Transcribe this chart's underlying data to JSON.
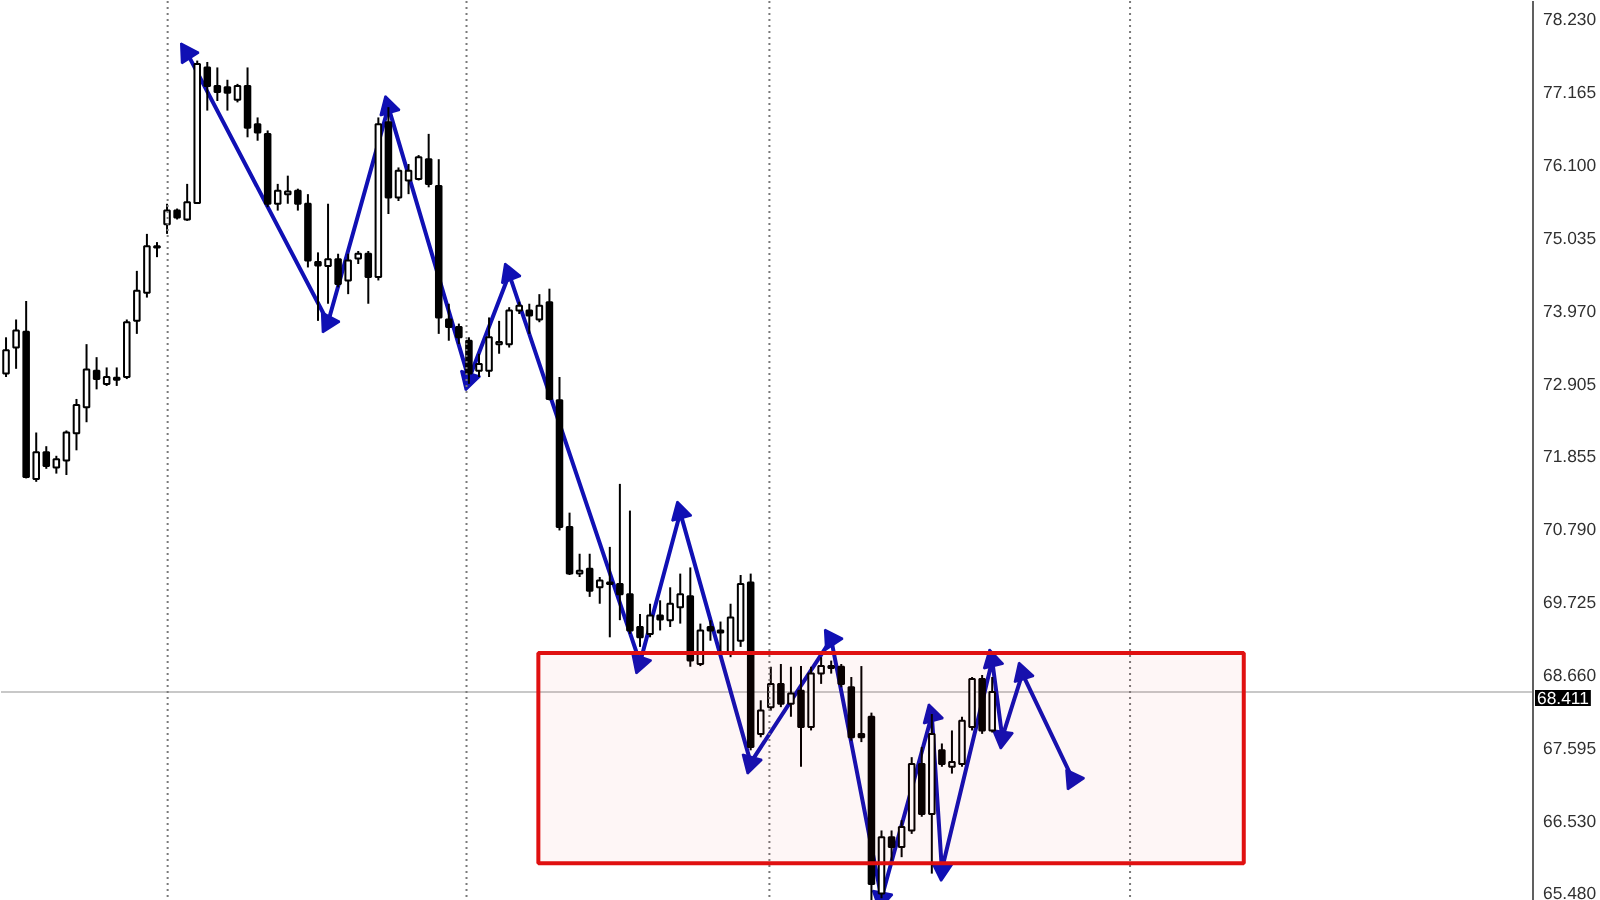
{
  "chart_data": {
    "type": "candlestick",
    "categories": [
      null,
      null,
      null,
      null,
      null,
      null,
      null,
      null,
      null,
      null,
      null,
      null,
      null,
      null,
      null,
      null,
      null,
      null,
      null,
      null,
      null,
      null,
      null,
      null,
      null,
      null,
      null,
      null,
      null,
      null,
      null,
      null,
      null,
      null,
      null,
      null,
      null,
      null,
      null,
      null,
      null,
      null,
      null,
      null,
      null,
      null,
      null,
      null,
      null,
      null,
      null,
      null,
      null,
      null,
      null,
      null,
      null,
      null,
      null,
      null,
      null,
      null,
      null,
      null,
      null,
      null,
      null,
      null,
      null,
      null,
      null,
      null,
      null,
      null,
      null,
      null,
      null,
      null,
      null,
      null,
      null,
      null,
      null,
      null,
      null,
      null,
      null,
      null,
      null,
      null,
      null,
      null,
      null,
      null,
      null,
      null,
      null,
      null,
      null,
      null,
      null,
      null,
      null,
      null,
      null,
      null,
      null,
      null,
      null,
      null,
      null,
      null,
      null,
      null,
      null,
      null,
      null,
      null,
      null,
      null,
      null,
      null,
      null,
      null,
      null,
      null,
      null,
      null,
      null,
      null,
      null,
      null,
      null,
      null,
      null,
      null,
      null,
      null,
      null,
      null,
      null,
      null,
      null,
      null,
      null,
      null,
      null,
      null,
      null,
      null,
      null,
      null,
      null,
      null,
      null,
      null,
      null,
      null,
      null
    ],
    "ohlc": [
      [
        73.06,
        73.59,
        73.01,
        73.4
      ],
      [
        73.44,
        73.85,
        73.13,
        73.69
      ],
      [
        73.67,
        74.12,
        71.53,
        71.55
      ],
      [
        71.52,
        72.2,
        71.48,
        71.91
      ],
      [
        71.91,
        72.0,
        71.67,
        71.71
      ],
      [
        71.69,
        71.86,
        71.6,
        71.81
      ],
      [
        71.79,
        72.23,
        71.58,
        72.2
      ],
      [
        72.19,
        72.69,
        71.94,
        72.6
      ],
      [
        72.57,
        73.49,
        72.35,
        73.12
      ],
      [
        73.1,
        73.3,
        72.83,
        72.98
      ],
      [
        72.91,
        73.15,
        72.88,
        73.01
      ],
      [
        72.97,
        73.15,
        72.88,
        73.0
      ],
      [
        73.01,
        73.85,
        72.98,
        73.81
      ],
      [
        73.83,
        74.56,
        73.64,
        74.27
      ],
      [
        74.24,
        75.1,
        74.17,
        74.92
      ],
      [
        74.9,
        74.98,
        74.76,
        74.92
      ],
      [
        75.24,
        75.54,
        75.1,
        75.44
      ],
      [
        75.44,
        75.47,
        75.31,
        75.34
      ],
      [
        75.31,
        75.83,
        75.29,
        75.56
      ],
      [
        75.55,
        77.63,
        75.54,
        77.58
      ],
      [
        77.53,
        77.61,
        76.9,
        77.26
      ],
      [
        77.26,
        77.53,
        77.04,
        77.17
      ],
      [
        77.24,
        77.35,
        76.9,
        77.16
      ],
      [
        77.06,
        77.29,
        77.02,
        77.26
      ],
      [
        77.26,
        77.53,
        76.51,
        76.65
      ],
      [
        76.7,
        76.8,
        76.46,
        76.58
      ],
      [
        76.56,
        76.61,
        75.49,
        75.54
      ],
      [
        75.54,
        75.83,
        75.44,
        75.73
      ],
      [
        75.68,
        75.95,
        75.54,
        75.72
      ],
      [
        75.73,
        75.76,
        75.44,
        75.54
      ],
      [
        75.54,
        75.68,
        74.61,
        74.71
      ],
      [
        74.69,
        74.83,
        73.83,
        74.64
      ],
      [
        74.63,
        75.54,
        74.08,
        74.73
      ],
      [
        74.73,
        74.81,
        74.32,
        74.37
      ],
      [
        74.42,
        74.81,
        74.22,
        74.71
      ],
      [
        74.74,
        74.85,
        74.66,
        74.81
      ],
      [
        74.81,
        74.85,
        74.08,
        74.47
      ],
      [
        74.47,
        76.8,
        74.42,
        76.7
      ],
      [
        76.73,
        76.95,
        75.39,
        75.63
      ],
      [
        75.63,
        76.07,
        75.58,
        76.02
      ],
      [
        75.88,
        76.12,
        75.68,
        76.02
      ],
      [
        75.9,
        76.25,
        75.88,
        76.22
      ],
      [
        76.19,
        76.56,
        75.78,
        75.83
      ],
      [
        75.8,
        76.19,
        73.64,
        73.88
      ],
      [
        73.85,
        74.08,
        73.54,
        73.74
      ],
      [
        73.74,
        73.79,
        73.49,
        73.59
      ],
      [
        73.54,
        73.59,
        72.91,
        73.06
      ],
      [
        73.1,
        73.35,
        73.01,
        73.2
      ],
      [
        73.1,
        73.88,
        73.01,
        73.59
      ],
      [
        73.49,
        73.83,
        73.35,
        73.52
      ],
      [
        73.49,
        74.03,
        73.44,
        73.98
      ],
      [
        73.98,
        74.11,
        73.93,
        74.05
      ],
      [
        73.98,
        74.08,
        73.64,
        73.91
      ],
      [
        73.85,
        74.22,
        73.81,
        74.05
      ],
      [
        74.1,
        74.3,
        72.67,
        72.69
      ],
      [
        72.67,
        73.01,
        70.77,
        70.82
      ],
      [
        70.82,
        71.03,
        70.12,
        70.14
      ],
      [
        70.14,
        70.43,
        70.09,
        70.18
      ],
      [
        70.21,
        70.43,
        69.8,
        69.89
      ],
      [
        69.94,
        70.09,
        69.7,
        70.04
      ],
      [
        70.01,
        70.53,
        69.21,
        69.99
      ],
      [
        69.99,
        71.45,
        69.46,
        69.84
      ],
      [
        69.84,
        71.06,
        69.26,
        69.31
      ],
      [
        69.36,
        69.55,
        69.07,
        69.21
      ],
      [
        69.26,
        69.7,
        69.21,
        69.53
      ],
      [
        69.53,
        69.75,
        69.31,
        69.47
      ],
      [
        69.46,
        69.94,
        69.36,
        69.7
      ],
      [
        69.65,
        70.14,
        69.41,
        69.84
      ],
      [
        69.81,
        70.23,
        68.78,
        68.87
      ],
      [
        68.82,
        69.41,
        68.79,
        69.31
      ],
      [
        69.36,
        69.46,
        69.16,
        69.31
      ],
      [
        69.31,
        69.44,
        68.97,
        69.28
      ],
      [
        68.98,
        69.7,
        68.92,
        69.5
      ],
      [
        69.16,
        70.12,
        69.07,
        69.99
      ],
      [
        70.01,
        70.14,
        67.56,
        67.61
      ],
      [
        67.8,
        68.29,
        67.75,
        68.14
      ],
      [
        68.19,
        68.78,
        68.14,
        68.53
      ],
      [
        68.53,
        68.82,
        68.19,
        68.24
      ],
      [
        68.24,
        68.78,
        68.05,
        68.39
      ],
      [
        68.43,
        68.79,
        67.32,
        67.9
      ],
      [
        67.9,
        68.78,
        67.85,
        68.68
      ],
      [
        68.68,
        68.92,
        68.53,
        68.79
      ],
      [
        68.76,
        68.87,
        68.68,
        68.79
      ],
      [
        68.78,
        68.82,
        68.48,
        68.53
      ],
      [
        68.48,
        68.63,
        67.7,
        67.75
      ],
      [
        67.8,
        68.79,
        67.68,
        67.75
      ],
      [
        68.05,
        68.11,
        65.37,
        65.61
      ],
      [
        65.47,
        66.39,
        65.4,
        66.29
      ],
      [
        66.29,
        66.39,
        65.95,
        66.15
      ],
      [
        66.15,
        66.54,
        66.0,
        66.44
      ],
      [
        66.39,
        67.46,
        66.34,
        67.36
      ],
      [
        67.36,
        67.61,
        66.59,
        66.63
      ],
      [
        66.63,
        68.09,
        65.76,
        67.8
      ],
      [
        67.56,
        67.66,
        67.32,
        67.36
      ],
      [
        67.32,
        67.85,
        67.22,
        67.39
      ],
      [
        67.36,
        68.05,
        67.32,
        67.99
      ],
      [
        67.9,
        68.63,
        67.85,
        68.6
      ],
      [
        68.6,
        68.66,
        67.8,
        67.85
      ],
      [
        67.85,
        68.63,
        67.82,
        68.41
      ],
      null,
      null,
      null,
      null,
      null,
      null,
      null,
      null,
      null,
      null,
      null,
      null,
      null,
      null,
      null,
      null,
      null,
      null,
      null,
      null,
      null,
      null,
      null,
      null,
      null,
      null,
      null,
      null,
      null,
      null,
      null,
      null,
      null,
      null,
      null,
      null,
      null,
      null,
      null,
      null,
      null,
      null,
      null,
      null,
      null,
      null,
      null,
      null,
      null,
      null,
      null,
      null,
      null,
      null,
      null,
      null,
      null,
      null,
      null,
      null
    ],
    "color": "#000000",
    "ylim": [
      65.36,
      78.5
    ],
    "yticks": [
      {
        "value": 78.23,
        "label": "78.230"
      },
      77.165,
      {
        "value": 76.1,
        "label": "76.100"
      },
      75.035,
      {
        "value": 73.97,
        "label": "73.970"
      },
      72.905,
      71.855,
      {
        "value": 70.79,
        "label": "70.790"
      },
      69.725,
      {
        "value": 68.66,
        "label": "68.660"
      },
      67.595,
      {
        "value": 66.53,
        "label": "66.530"
      },
      {
        "value": 65.48,
        "label": "65.480"
      }
    ],
    "tick_labels": "y",
    "ref_lines": [
      {
        "axis": "y",
        "value": 68.411,
        "label": "68.411",
        "color": "#c8c8c8"
      }
    ],
    "bands": [
      {
        "axis": "y",
        "from": 65.91,
        "to": 68.98,
        "color": "#e01010"
      }
    ],
    "series": [
      {
        "type": "line",
        "color": "#1010b4",
        "marker": "triangle",
        "values": [
          null,
          null,
          null,
          null,
          null,
          null,
          null,
          null,
          null,
          null,
          null,
          null,
          null,
          null,
          null,
          null,
          null,
          null,
          77.74,
          null,
          null,
          null,
          null,
          null,
          null,
          null,
          null,
          null,
          null,
          null,
          null,
          null,
          73.81,
          null,
          null,
          null,
          null,
          null,
          76.95,
          null,
          null,
          null,
          null,
          null,
          null,
          null,
          72.98,
          null,
          null,
          null,
          74.51,
          null,
          null,
          null,
          null,
          null,
          null,
          null,
          null,
          null,
          null,
          null,
          null,
          68.84,
          null,
          null,
          null,
          71.03,
          null,
          null,
          null,
          null,
          null,
          null,
          67.38,
          null,
          null,
          null,
          null,
          null,
          null,
          null,
          69.18,
          null,
          null,
          null,
          null,
          65.4,
          null,
          null,
          null,
          null,
          68.07,
          65.82,
          null,
          null,
          null,
          null,
          68.87,
          67.75,
          null,
          68.68,
          null,
          null,
          null,
          null,
          67.14,
          null,
          null,
          null,
          null,
          null,
          null,
          null,
          null,
          null,
          null,
          null,
          null,
          null,
          null,
          null,
          null,
          null,
          null,
          null,
          null,
          null,
          null,
          null,
          null,
          null,
          null,
          null,
          null,
          null,
          null,
          null,
          null,
          null,
          null,
          null,
          null,
          null,
          null,
          null,
          null,
          null,
          null,
          null,
          null,
          null,
          null,
          null,
          null,
          null,
          null,
          null,
          null
        ]
      }
    ]
  }
}
